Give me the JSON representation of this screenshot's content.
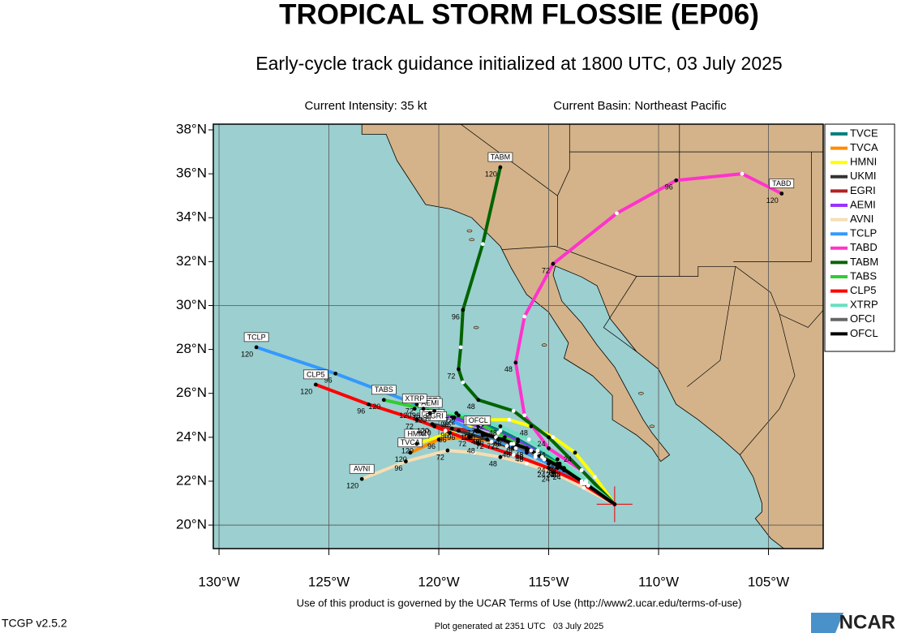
{
  "chart_data": {
    "type": "track-map",
    "title": "TROPICAL STORM FLOSSIE (EP06)",
    "subtitle": "Early-cycle track guidance initialized at 1800 UTC, 03 July 2025",
    "intensity": "Current Intensity: 35 kt",
    "basin": "Current Basin: Northeast Pacific",
    "xlim": [
      -130.26,
      -102.51
    ],
    "ylim": [
      18.93,
      38.26
    ],
    "xticks": [
      {
        "value": -130,
        "label": "130°W"
      },
      {
        "value": -125,
        "label": "125°W"
      },
      {
        "value": -120,
        "label": "120°W"
      },
      {
        "value": -115,
        "label": "115°W"
      },
      {
        "value": -110,
        "label": "110°W"
      },
      {
        "value": -105,
        "label": "105°W"
      }
    ],
    "yticks": [
      {
        "value": 20,
        "label": "20°N"
      },
      {
        "value": 22,
        "label": "22°N"
      },
      {
        "value": 24,
        "label": "24°N"
      },
      {
        "value": 26,
        "label": "26°N"
      },
      {
        "value": 28,
        "label": "28°N"
      },
      {
        "value": 30,
        "label": "30°N"
      },
      {
        "value": 32,
        "label": "32°N"
      },
      {
        "value": 34,
        "label": "34°N"
      },
      {
        "value": 36,
        "label": "36°N"
      },
      {
        "value": 38,
        "label": "38°N"
      }
    ],
    "grid": true,
    "legend": "right",
    "series": [
      {
        "name": "TVCE",
        "color": "#008080",
        "lon": [
          -112,
          -113.3,
          -114.5,
          -115.5,
          -116.4,
          -117.2,
          -118,
          -119.3,
          -120.5
        ],
        "lat": [
          20.95,
          21.9,
          22.8,
          23.4,
          23.9,
          24.3,
          24.6,
          24.9,
          25.2
        ],
        "hour_labels": [
          null,
          null,
          "24",
          null,
          "48",
          null,
          "72",
          "96",
          "120"
        ]
      },
      {
        "name": "TVCA",
        "color": "#ff8c00",
        "lon": [
          -112,
          -113.4,
          -114.6,
          -115.6,
          -116.6,
          -117.6,
          -118.6,
          -120,
          -121.3
        ],
        "lat": [
          20.95,
          21.9,
          22.6,
          23.1,
          23.5,
          23.8,
          24,
          23.9,
          23.3
        ],
        "hour_labels": [
          null,
          null,
          "24",
          null,
          "48",
          null,
          "72",
          "96",
          "120"
        ]
      },
      {
        "name": "HMNI",
        "color": "#ffff00",
        "lon": [
          -112,
          -112.9,
          -113.8,
          -114.8,
          -115.8,
          -116.8,
          -117.8,
          -119.5,
          -121
        ],
        "lat": [
          20.95,
          22.2,
          23.3,
          24,
          24.5,
          24.8,
          24.8,
          24.2,
          23.7
        ],
        "hour_labels": [
          null,
          null,
          "24",
          null,
          "48",
          null,
          "72",
          "96",
          "120"
        ]
      },
      {
        "name": "UKMI",
        "color": "#333333",
        "lon": [
          -112,
          -113.3,
          -114.3,
          -115.2,
          -116,
          -116.9,
          -117.8,
          -119.1,
          -120.3
        ],
        "lat": [
          20.95,
          21.9,
          22.6,
          23,
          23.3,
          23.6,
          23.9,
          24.3,
          24.6
        ],
        "hour_labels": [
          null,
          null,
          "24",
          null,
          "48",
          null,
          "72",
          "96",
          "120"
        ]
      },
      {
        "name": "EGRI",
        "color": "#b22222",
        "lon": [
          -112,
          -113.4,
          -114.6,
          -115.6,
          -116.5,
          -117.4,
          -118.3,
          -119.4,
          -120.2
        ],
        "lat": [
          20.95,
          21.9,
          22.6,
          23.2,
          23.6,
          24,
          24.3,
          24.4,
          24.5
        ],
        "hour_labels": [
          null,
          null,
          "24",
          null,
          "48",
          null,
          "72",
          "96",
          "120"
        ]
      },
      {
        "name": "AEMI",
        "color": "#9933ff",
        "lon": [
          -112,
          -113.3,
          -114.5,
          -115.5,
          -116.4,
          -117.3,
          -118.2,
          -119.4,
          -120.4
        ],
        "lat": [
          20.95,
          21.9,
          22.7,
          23.3,
          23.8,
          24.2,
          24.5,
          24.9,
          25.1
        ],
        "hour_labels": [
          null,
          null,
          "24",
          null,
          "48",
          null,
          "72",
          "96",
          "120"
        ]
      },
      {
        "name": "AVNI",
        "color": "#f5deb3",
        "lon": [
          -112,
          -113.4,
          -114.8,
          -116,
          -117.2,
          -118.4,
          -119.6,
          -121.5,
          -123.5
        ],
        "lat": [
          20.95,
          21.7,
          22.4,
          22.8,
          23.1,
          23.3,
          23.4,
          22.9,
          22.1
        ],
        "hour_labels": [
          null,
          null,
          "24",
          null,
          "48",
          null,
          "72",
          "96",
          "120"
        ]
      },
      {
        "name": "TCLP",
        "color": "#3399ff",
        "lon": [
          -112,
          -113.5,
          -115,
          -116.5,
          -118,
          -119.5,
          -121,
          -124.7,
          -128.3
        ],
        "lat": [
          20.95,
          22,
          22.8,
          23.5,
          24.1,
          24.8,
          25.5,
          26.9,
          28.1
        ],
        "hour_labels": [
          null,
          null,
          "24",
          null,
          "48",
          null,
          "72",
          "96",
          "120"
        ]
      },
      {
        "name": "TABD",
        "color": "#ff33cc",
        "lon": [
          -112,
          -113.5,
          -115,
          -116.1,
          -116.5,
          -116.1,
          -114.8,
          -111.9,
          -109.2,
          -106.2,
          -104.4
        ],
        "lat": [
          20.95,
          22.5,
          23.5,
          25,
          27.4,
          29.5,
          31.9,
          34.2,
          35.7,
          36,
          35.1
        ],
        "hour_labels": [
          null,
          null,
          "24",
          null,
          "48",
          null,
          "72",
          null,
          "96",
          null,
          "120"
        ]
      },
      {
        "name": "TABM",
        "color": "#006400",
        "lon": [
          -112,
          -113.5,
          -115,
          -116.6,
          -118.2,
          -118.9,
          -119.1,
          -119,
          -118.9,
          -118,
          -117.2
        ],
        "lat": [
          20.95,
          22.5,
          24,
          25.2,
          25.7,
          26.5,
          27.1,
          28.1,
          29.8,
          32.8,
          36.3
        ],
        "hour_labels": [
          null,
          null,
          "24",
          null,
          "48",
          null,
          "72",
          null,
          "96",
          null,
          "120"
        ]
      },
      {
        "name": "TABS",
        "color": "#33cc33",
        "lon": [
          -112,
          -113.3,
          -114.6,
          -115.8,
          -117,
          -118.1,
          -119.1,
          -120.7,
          -122.5
        ],
        "lat": [
          20.95,
          22,
          22.8,
          23.4,
          24,
          24.6,
          25,
          25.3,
          25.7
        ],
        "hour_labels": [
          null,
          null,
          "24",
          null,
          "48",
          null,
          "72",
          "96",
          "120"
        ]
      },
      {
        "name": "CLP5",
        "color": "#ff0000",
        "lon": [
          -112,
          -113.5,
          -115,
          -116.6,
          -118.2,
          -119.7,
          -121,
          -123.2,
          -125.6
        ],
        "lat": [
          20.95,
          21.9,
          22.6,
          23.2,
          23.7,
          24.3,
          24.8,
          25.5,
          26.4
        ],
        "hour_labels": [
          null,
          null,
          "24",
          null,
          "48",
          null,
          "72",
          "96",
          "120"
        ]
      },
      {
        "name": "XTRP",
        "color": "#66e0c0",
        "lon": [
          -112,
          -113.3,
          -114.6,
          -115.9,
          -117.2,
          -118.3,
          -119.2,
          -120.2,
          -121.1
        ],
        "lat": [
          20.95,
          22,
          23,
          23.9,
          24.5,
          24.9,
          25.1,
          25.2,
          25.3
        ],
        "hour_labels": [
          null,
          null,
          "24",
          null,
          "48",
          null,
          "72",
          "96",
          "120"
        ]
      },
      {
        "name": "OFCI",
        "color": "#666666",
        "lon": [
          -112,
          -113.2,
          -114.3,
          -115.2,
          -116,
          -116.7,
          -117.3,
          -117.9,
          -118.3
        ],
        "lat": [
          20.95,
          21.8,
          22.5,
          23,
          23.4,
          23.7,
          23.9,
          24.1,
          24.3
        ],
        "hour_labels": [
          null,
          null,
          "24",
          null,
          "48",
          null,
          "72",
          "96",
          "120"
        ]
      },
      {
        "name": "OFCL",
        "color": "#000000",
        "lon": [
          -112,
          -113.2,
          -114.4,
          -115.3,
          -116,
          -116.6,
          -117.1,
          -117.8,
          -118.2
        ],
        "lat": [
          20.95,
          21.8,
          22.6,
          23.1,
          23.5,
          23.7,
          23.9,
          24.1,
          24.3
        ],
        "hour_labels": [
          null,
          null,
          "24",
          null,
          "48",
          null,
          "72",
          "96",
          "120"
        ]
      }
    ],
    "terms": "Use of this product is governed by the UCAR Terms of Use (http://www2.ucar.edu/terms-of-use)",
    "version": "TCGP v2.5.2",
    "generated": "Plot generated at 2351 UTC   03 July 2025",
    "logo": "NCAR"
  }
}
